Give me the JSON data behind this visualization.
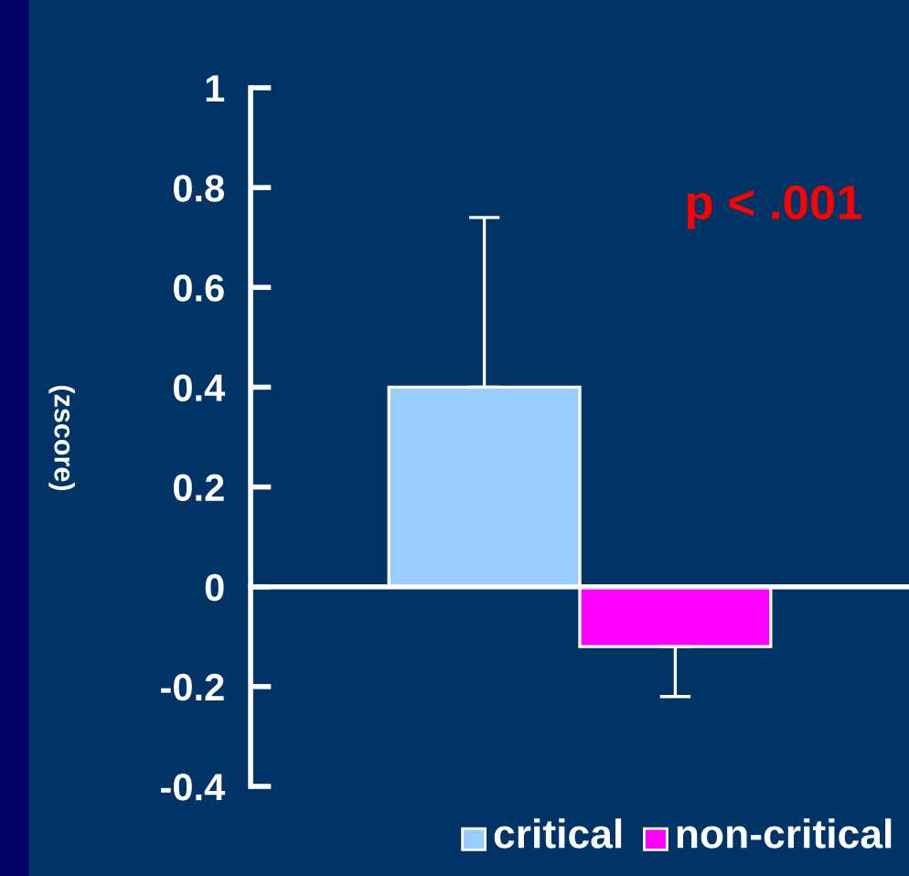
{
  "chart_data": {
    "type": "bar",
    "ylabel": "(zscore)",
    "categories": [
      null
    ],
    "series": [
      {
        "name": "critical",
        "color": "#99ccff",
        "values": [
          0.4
        ],
        "errors": [
          [
            0.4,
            0.74
          ]
        ]
      },
      {
        "name": "non-critical",
        "color": "#ff00ff",
        "values": [
          -0.12
        ],
        "errors": [
          [
            -0.22,
            -0.12
          ]
        ]
      }
    ],
    "ylim": [
      -0.4,
      1
    ],
    "yticks": [
      -0.4,
      -0.2,
      0,
      0.2,
      0.4,
      0.6,
      0.8,
      1
    ],
    "annotations": [
      "p < .001"
    ],
    "legend": "bottom"
  }
}
